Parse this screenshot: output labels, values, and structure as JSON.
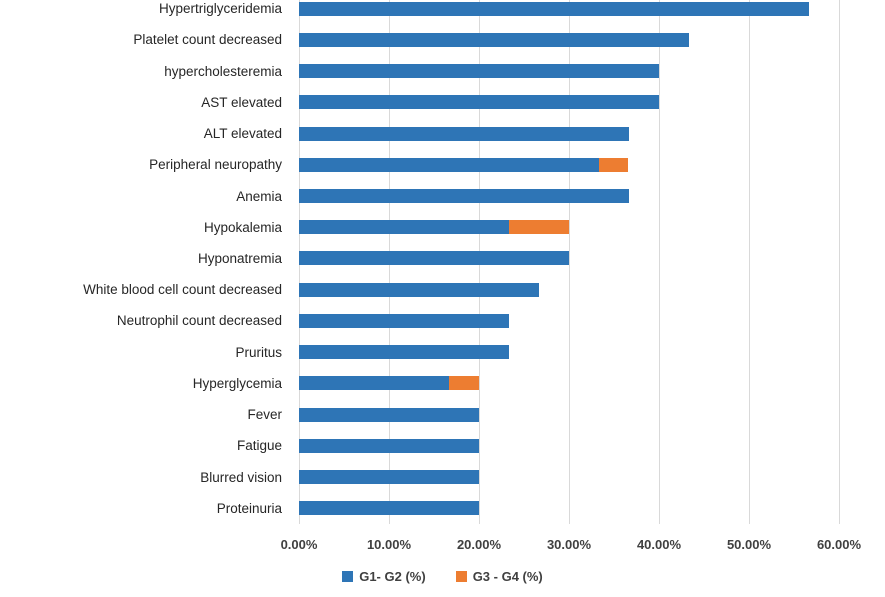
{
  "chart_data": {
    "type": "bar",
    "orientation": "horizontal",
    "stacked": true,
    "title": "",
    "xlabel": "",
    "ylabel": "",
    "xlim": [
      0,
      60
    ],
    "grid": true,
    "legend_position": "bottom",
    "x_ticks": [
      "0.00%",
      "10.00%",
      "20.00%",
      "30.00%",
      "40.00%",
      "50.00%",
      "60.00%"
    ],
    "x_tick_values": [
      0,
      10,
      20,
      30,
      40,
      50,
      60
    ],
    "categories": [
      "Hypertriglyceridemia",
      "Platelet count decreased",
      "hypercholesteremia",
      "AST elevated",
      "ALT elevated",
      "Peripheral neuropathy",
      "Anemia",
      "Hypokalemia",
      "Hyponatremia",
      "White blood cell count decreased",
      "Neutrophil count decreased",
      "Pruritus",
      "Hyperglycemia",
      "Fever",
      "Fatigue",
      "Blurred vision",
      "Proteinuria"
    ],
    "series": [
      {
        "name": "G1- G2 (%)",
        "color": "#2E75B6",
        "values": [
          56.7,
          43.3,
          40.0,
          40.0,
          36.7,
          33.3,
          36.7,
          23.3,
          30.0,
          26.7,
          23.3,
          23.3,
          16.7,
          20.0,
          20.0,
          20.0,
          20.0
        ]
      },
      {
        "name": "G3 - G4 (%)",
        "color": "#ED7D31",
        "values": [
          0,
          0,
          0,
          0,
          0,
          3.3,
          0,
          6.7,
          0,
          0,
          0,
          0,
          3.3,
          0,
          0,
          0,
          0
        ]
      }
    ],
    "colors": {
      "gridline": "#D9D9D9",
      "tick_text": "#404040",
      "category_text": "#262626",
      "background": "#FFFFFF"
    }
  }
}
